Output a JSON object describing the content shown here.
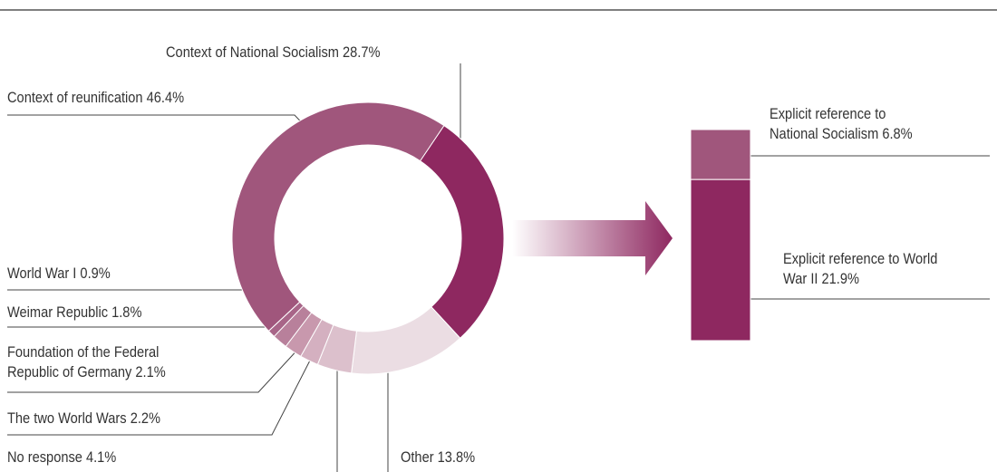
{
  "chart_data": [
    {
      "type": "donut",
      "categories": [
        "Context of National Socialism",
        "Other",
        "No response",
        "The two World Wars",
        "Foundation of the Federal Republic of Germany",
        "Weimar Republic",
        "World War I",
        "Context of reunification"
      ],
      "values": [
        28.7,
        13.8,
        4.1,
        2.2,
        2.1,
        1.8,
        0.9,
        46.4
      ],
      "value_labels": [
        "28.7%",
        "13.8%",
        "4.1%",
        "2.2%",
        "2.1%",
        "1.8%",
        "0.9%",
        "46.4%"
      ],
      "colors": [
        "#8e2860",
        "#ebdde3",
        "#dcc0cc",
        "#d4b0c0",
        "#c898ad",
        "#b8809b",
        "#a86588",
        "#a0567c"
      ]
    },
    {
      "type": "stacked-bar",
      "categories": [
        "Explicit reference to National Socialism",
        "Explicit reference to World War II"
      ],
      "values": [
        6.8,
        21.9
      ],
      "value_labels": [
        "6.8%",
        "21.9%"
      ],
      "colors": [
        "#a0567c",
        "#8e2860"
      ]
    }
  ]
}
